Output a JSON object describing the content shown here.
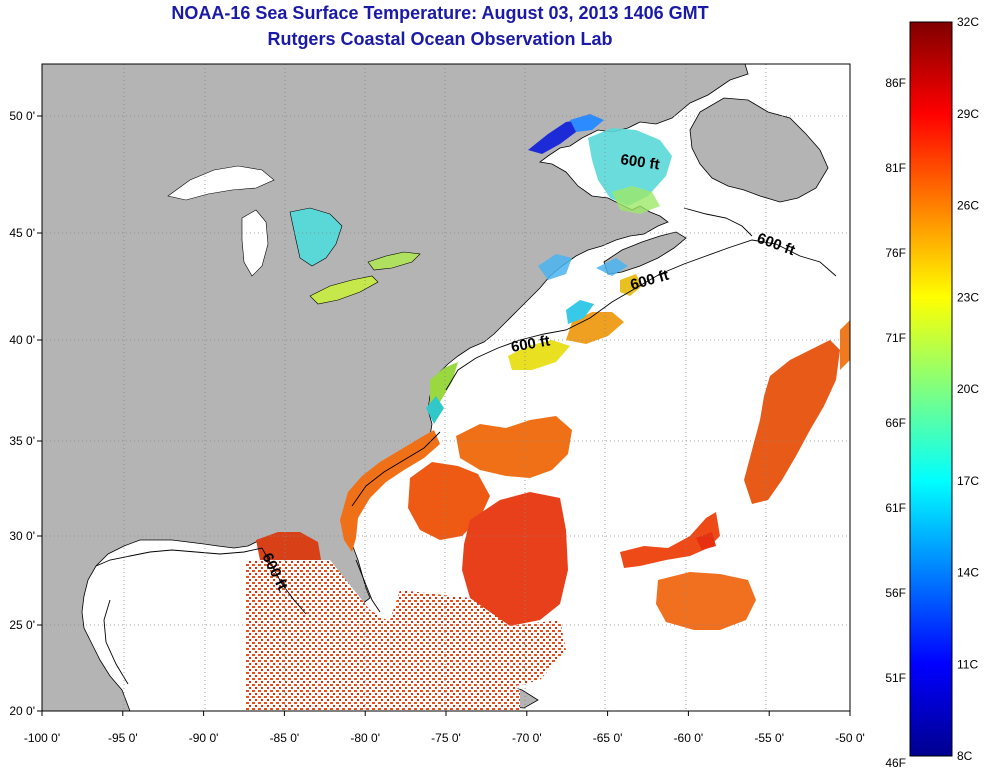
{
  "header": {
    "title": "NOAA-16 Sea Surface Temperature:  August 03, 2013 1406 GMT",
    "subtitle": "Rutgers Coastal Ocean Observation Lab"
  },
  "axes": {
    "lon_ticks": [
      "-100 0'",
      "-95 0'",
      "-90 0'",
      "-85 0'",
      "-80 0'",
      "-75 0'",
      "-70 0'",
      "-65 0'",
      "-60 0'",
      "-55 0'",
      "-50 0'"
    ],
    "lat_ticks": [
      "50 0'",
      "45 0'",
      "40 0'",
      "35 0'",
      "30 0'",
      "25 0'",
      "20 0'"
    ]
  },
  "contour_label": "600 ft",
  "colorbar": {
    "celsius": [
      "32C",
      "29C",
      "26C",
      "23C",
      "20C",
      "17C",
      "14C",
      "11C",
      "8C"
    ],
    "fahrenheit": [
      "86F",
      "81F",
      "76F",
      "71F",
      "66F",
      "61F",
      "56F",
      "51F",
      "46F"
    ]
  },
  "colors": {
    "land": "#b4b4b4",
    "water_no_data": "#ffffff",
    "title": "#1a1aa6"
  }
}
